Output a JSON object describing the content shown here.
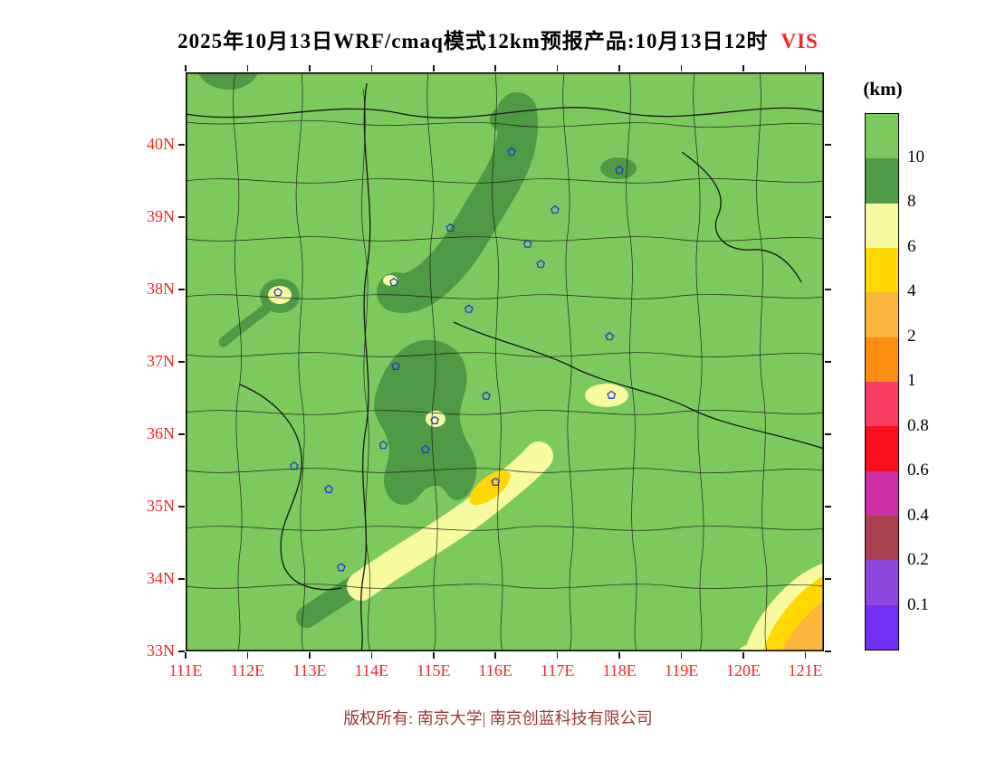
{
  "header": {
    "title": "2025年10月13日WRF/cmaq模式12km预报产品:10月13日12时",
    "variable": "VIS"
  },
  "footer": {
    "copyright": "版权所有: 南京大学| 南京创蓝科技有限公司"
  },
  "palette": {
    "accent_red": "#f42525",
    "copyright_red": "#963a34",
    "line": "#161616",
    "marker_blue": "#2437d8",
    "frame": "#000000"
  },
  "chart_data": {
    "type": "heatmap",
    "title": "2025年10月13日WRF/cmaq模式12km预报产品:10月13日12时 VIS",
    "variable": "VIS",
    "unit": "km",
    "grid": false,
    "legend_position": "right",
    "x_axis": {
      "tick_labels": [
        "111E",
        "112E",
        "113E",
        "114E",
        "115E",
        "116E",
        "117E",
        "118E",
        "119E",
        "120E",
        "121E"
      ],
      "tick_values": [
        111,
        112,
        113,
        114,
        115,
        116,
        117,
        118,
        119,
        120,
        121
      ],
      "range": [
        111,
        121.3
      ]
    },
    "y_axis": {
      "tick_labels": [
        "40N",
        "39N",
        "38N",
        "37N",
        "36N",
        "35N",
        "34N",
        "33N"
      ],
      "tick_values": [
        40,
        39,
        38,
        37,
        36,
        35,
        34,
        33
      ],
      "range": [
        33,
        41
      ]
    },
    "legend": {
      "title": "(km)",
      "boundary_labels": [
        "10",
        "8",
        "6",
        "4",
        "2",
        "1",
        "0.8",
        "0.6",
        "0.4",
        "0.2",
        "0.1"
      ],
      "bins": [
        ">10",
        "8-10",
        "6-8",
        "4-6",
        "2-4",
        "1-2",
        "0.8-1",
        "0.6-0.8",
        "0.4-0.6",
        "0.2-0.4",
        "0.1-0.2",
        "<0.1"
      ],
      "colors": [
        "#7cc95d",
        "#4f9a44",
        "#f8fa9f",
        "#ffd800",
        "#fcb53c",
        "#fd8d0e",
        "#f93d62",
        "#fa0f1d",
        "#cc2fa8",
        "#a8404f",
        "#8f46de",
        "#7230f5"
      ]
    },
    "city_markers": [
      [
        116.26,
        39.9
      ],
      [
        118.0,
        39.65
      ],
      [
        116.96,
        39.1
      ],
      [
        115.27,
        38.85
      ],
      [
        116.52,
        38.63
      ],
      [
        112.49,
        37.96
      ],
      [
        114.36,
        38.1
      ],
      [
        115.57,
        37.73
      ],
      [
        116.73,
        38.35
      ],
      [
        117.84,
        37.35
      ],
      [
        114.39,
        36.94
      ],
      [
        117.87,
        36.54
      ],
      [
        115.85,
        36.53
      ],
      [
        114.87,
        35.79
      ],
      [
        114.19,
        35.85
      ],
      [
        112.75,
        35.56
      ],
      [
        113.31,
        35.24
      ],
      [
        116.0,
        35.34
      ],
      [
        113.51,
        34.16
      ],
      [
        115.02,
        36.19
      ]
    ],
    "features": [
      {
        "visibility_km": ">10",
        "color": "light green",
        "description": "Most of the map domain"
      },
      {
        "visibility_km": "8-10",
        "color": "dark green",
        "description": "Band from near Beijing southwest across central Hebei; ring around Taiyuan spot; mass over S Hebei / N Henan; band along NW side of the SW-Shandong strip; small patches at top-left edge and NE area"
      },
      {
        "visibility_km": "6-8",
        "color": "pale yellow",
        "description": "Diagonal strip from N Henan into SW Shandong; small spots near Taiyuan, S Hebei and central Shandong; SE corner of domain"
      },
      {
        "visibility_km": "4-6",
        "color": "yellow",
        "description": "Core of the SW Shandong strip and inner SE corner band"
      },
      {
        "visibility_km": "2-4",
        "color": "orange",
        "description": "Innermost area at the SE corner of the domain"
      }
    ]
  }
}
